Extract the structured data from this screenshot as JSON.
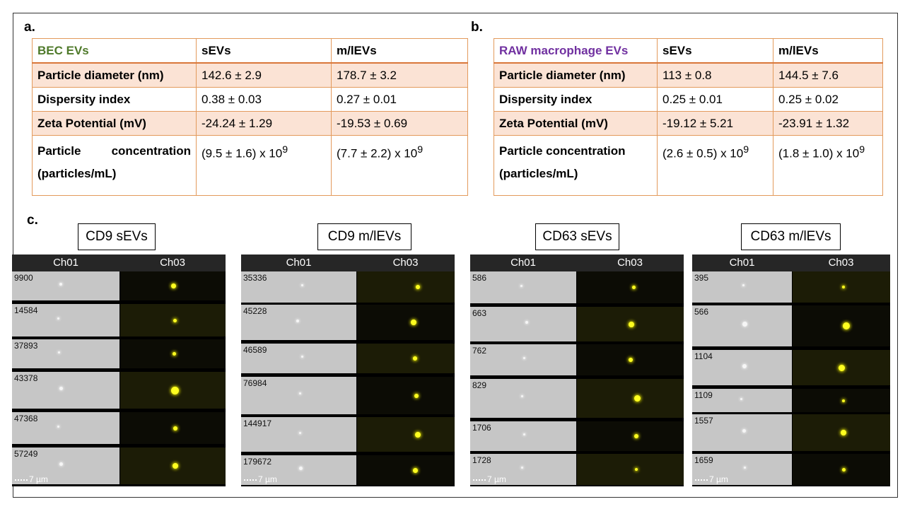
{
  "panel_labels": {
    "a": "a.",
    "b": "b.",
    "c": "c."
  },
  "table_a": {
    "header": [
      "BEC EVs",
      "sEVs",
      "m/lEVs"
    ],
    "rows": [
      {
        "label": "Particle diameter (nm)",
        "sevs": "142.6 ± 2.9",
        "mlevs": "178.7 ± 3.2"
      },
      {
        "label": "Dispersity index",
        "sevs": "0.38 ± 0.03",
        "mlevs": "0.27 ± 0.01"
      },
      {
        "label": "Zeta Potential (mV)",
        "sevs": "-24.24 ± 1.29",
        "mlevs": "-19.53 ± 0.69"
      },
      {
        "label": "Particle concentration",
        "label2": "(particles/mL)",
        "sevs": "(9.5 ± 1.6) x 10",
        "mlevs": "(7.7 ± 2.2) x 10",
        "exp": "9"
      }
    ]
  },
  "table_b": {
    "header": [
      "RAW macrophage EVs",
      "sEVs",
      "m/lEVs"
    ],
    "rows": [
      {
        "label": "Particle diameter (nm)",
        "sevs": "113 ± 0.8",
        "mlevs": "144.5 ± 7.6"
      },
      {
        "label": "Dispersity index",
        "sevs": "0.25 ± 0.01",
        "mlevs": "0.25 ± 0.02"
      },
      {
        "label": "Zeta Potential (mV)",
        "sevs": "-19.12 ± 5.21",
        "mlevs": "-23.91 ± 1.32"
      },
      {
        "label": "Particle concentration",
        "label2": "(particles/mL)",
        "sevs": "(2.6 ± 0.5) x 10",
        "mlevs": "(1.8 ± 1.0) x 10",
        "exp": "9"
      }
    ]
  },
  "flow": {
    "channel_left": "Ch01",
    "channel_right": "Ch03",
    "scale_label": "7 µm",
    "panels": [
      {
        "title": "CD9 sEVs",
        "events": [
          "9900",
          "14584",
          "37893",
          "43378",
          "47368",
          "57249"
        ]
      },
      {
        "title": "CD9 m/lEVs",
        "events": [
          "35336",
          "45228",
          "46589",
          "76984",
          "144917",
          "179672"
        ]
      },
      {
        "title": "CD63 sEVs",
        "events": [
          "586",
          "663",
          "762",
          "829",
          "1706",
          "1728"
        ]
      },
      {
        "title": "CD63 m/lEVs",
        "events": [
          "395",
          "566",
          "1104",
          "1109",
          "1557",
          "1659"
        ]
      }
    ]
  }
}
